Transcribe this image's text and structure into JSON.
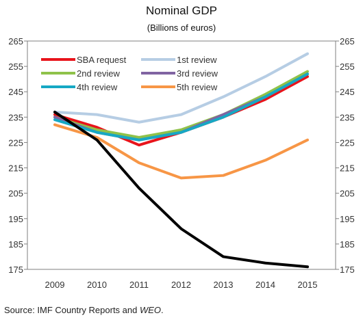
{
  "chart_data": {
    "type": "line",
    "title": "Nominal GDP",
    "subtitle": "(Billions of euros)",
    "x": [
      "2009",
      "2010",
      "2011",
      "2012",
      "2013",
      "2014",
      "2015"
    ],
    "ylim": [
      175,
      265
    ],
    "yticks": [
      "175",
      "185",
      "195",
      "205",
      "215",
      "225",
      "235",
      "245",
      "255",
      "265"
    ],
    "grid": false,
    "legend_position": "top-left",
    "series": [
      {
        "name": "SBA request",
        "color": "#e8141b",
        "values": [
          236,
          231,
          224,
          229,
          235,
          242,
          251
        ]
      },
      {
        "name": "1st review",
        "color": "#b6cde4",
        "values": [
          237,
          236,
          233,
          236,
          243,
          251,
          260
        ]
      },
      {
        "name": "2nd review",
        "color": "#8fc24a",
        "values": [
          235,
          230,
          227,
          230,
          236,
          244,
          253
        ]
      },
      {
        "name": "3rd review",
        "color": "#8064a2",
        "values": [
          235,
          229,
          226,
          229,
          236,
          243,
          252
        ]
      },
      {
        "name": "4th review",
        "color": "#16a8c4",
        "values": [
          234,
          229,
          226,
          229,
          235,
          243,
          252
        ]
      },
      {
        "name": "5th review",
        "color": "#f79646",
        "values": [
          232,
          227,
          217,
          211,
          212,
          218,
          226
        ]
      },
      {
        "name": "",
        "color": "#000000",
        "values": [
          237,
          226,
          207,
          191,
          180,
          177.5,
          176
        ]
      }
    ]
  },
  "source": {
    "prefix": "Source: IMF Country Reports and ",
    "italic": "WEO",
    "suffix": "."
  }
}
